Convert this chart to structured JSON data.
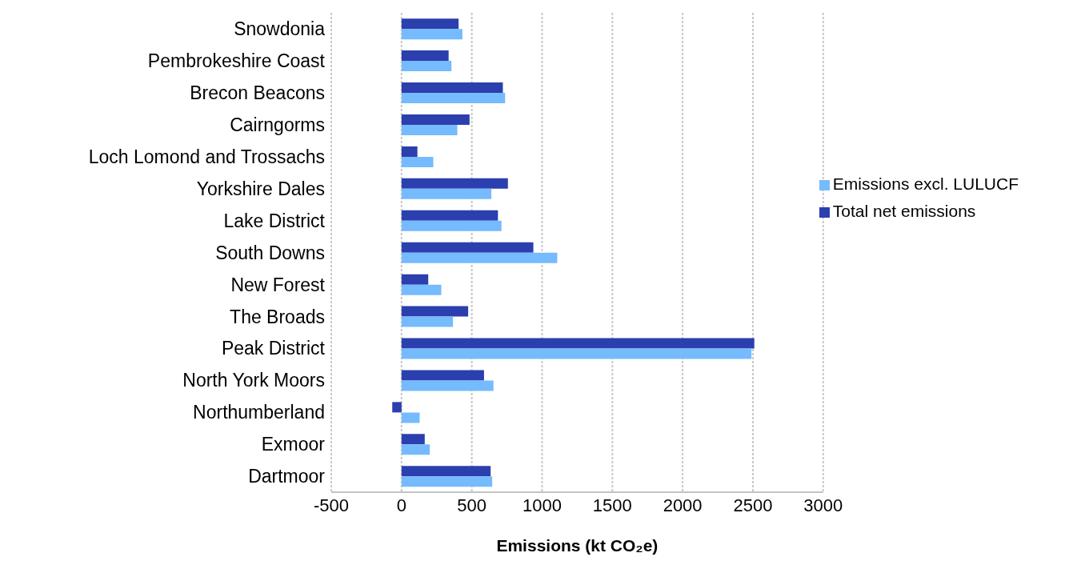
{
  "chart_data": {
    "type": "bar",
    "orientation": "horizontal",
    "xlabel": "Emissions (kt CO₂e)",
    "categories": [
      "Snowdonia",
      "Pembrokeshire Coast",
      "Brecon Beacons",
      "Cairngorms",
      "Loch Lomond and Trossachs",
      "Yorkshire Dales",
      "Lake District",
      "South Downs",
      "New Forest",
      "The Broads",
      "Peak District",
      "North York Moors",
      "Northumberland",
      "Exmoor",
      "Dartmoor"
    ],
    "series": [
      {
        "name": "Total net emissions",
        "color": "#2b3fae",
        "values": [
          406,
          335,
          721,
          484,
          113,
          757,
          686,
          938,
          190,
          474,
          2510,
          587,
          -66,
          165,
          634
        ]
      },
      {
        "name": "Emissions excl. LULUCF",
        "color": "#75bbfd",
        "values": [
          433,
          355,
          737,
          397,
          226,
          639,
          711,
          1108,
          283,
          366,
          2490,
          654,
          129,
          201,
          645
        ]
      }
    ],
    "xlim": [
      -500,
      3000
    ],
    "xticks": [
      -500,
      0,
      500,
      1000,
      1500,
      2000,
      2500,
      3000
    ],
    "grid": "x",
    "legend": "right"
  }
}
